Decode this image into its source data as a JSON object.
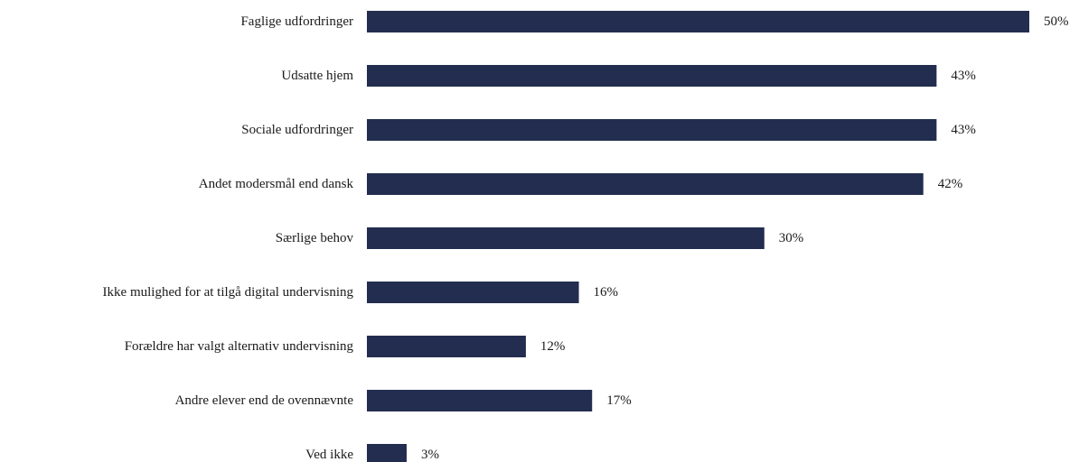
{
  "chart_data": {
    "type": "bar",
    "orientation": "horizontal",
    "title": "",
    "xlabel": "",
    "ylabel": "",
    "categories": [
      "Faglige udfordringer",
      "Udsatte hjem",
      "Sociale udfordringer",
      "Andet modersmål end dansk",
      "Særlige behov",
      "Ikke mulighed for at tilgå digital undervisning",
      "Forældre har valgt alternativ undervisning",
      "Andre elever end de ovennævnte",
      "Ved ikke"
    ],
    "values": [
      50,
      43,
      43,
      42,
      30,
      16,
      12,
      17,
      3
    ],
    "value_labels": [
      "50%",
      "43%",
      "43%",
      "42%",
      "30%",
      "16%",
      "12%",
      "17%",
      "3%"
    ],
    "xlim": [
      0,
      50
    ],
    "unit": "%",
    "grid": false,
    "legend": "none",
    "bar_color": "#222d4f"
  }
}
